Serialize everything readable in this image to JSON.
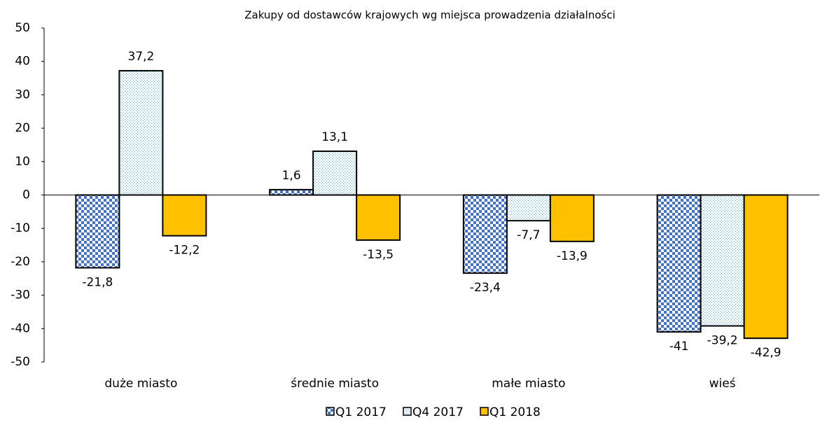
{
  "chart_data": {
    "type": "bar",
    "title": "Zakupy od dostawców krajowych wg miejsca prowadzenia działalności",
    "categories": [
      "duże miasto",
      "średnie miasto",
      "małe miasto",
      "wieś"
    ],
    "series": [
      {
        "name": "Q1 2017",
        "color": "#4472c4",
        "pattern": "checker",
        "values": [
          -21.8,
          1.6,
          -23.4,
          -41
        ],
        "value_labels": [
          "-21,8",
          "1,6",
          "-23,4",
          "-41"
        ]
      },
      {
        "name": "Q4 2017",
        "color": "#5b9bd5",
        "pattern": "dots",
        "values": [
          37.2,
          13.1,
          -7.7,
          -39.2
        ],
        "value_labels": [
          "37,2",
          "13,1",
          "-7,7",
          "-39,2"
        ]
      },
      {
        "name": "Q1 2018",
        "color": "#ffc000",
        "pattern": "solid",
        "values": [
          -12.2,
          -13.5,
          -13.9,
          -42.9
        ],
        "value_labels": [
          "-12,2",
          "-13,5",
          "-13,9",
          "-42,9"
        ]
      }
    ],
    "ylim": [
      -50,
      50
    ],
    "yticks": [
      -50,
      -40,
      -30,
      -20,
      -10,
      0,
      10,
      20,
      30,
      40,
      50
    ],
    "grid": false,
    "legend": "bottom"
  }
}
